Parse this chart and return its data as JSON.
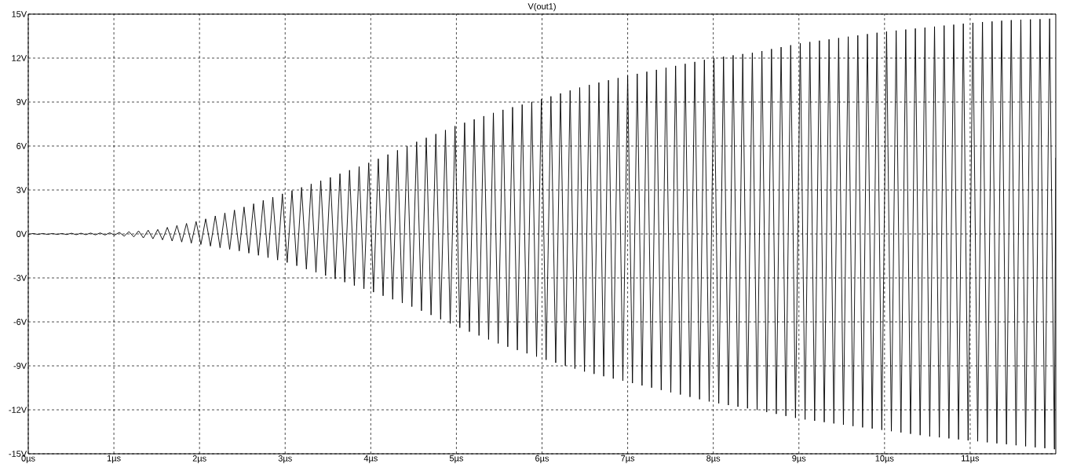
{
  "chart_data": {
    "type": "line",
    "title": "V(out1)",
    "color": "#000000",
    "grid": true,
    "marker": "none",
    "line_style": "solid",
    "xlim": [
      0,
      12
    ],
    "ylim": [
      -15,
      15
    ],
    "xticks": [
      {
        "value": 0,
        "label": "0µs"
      },
      {
        "value": 1,
        "label": "1µs"
      },
      {
        "value": 2,
        "label": "2µs"
      },
      {
        "value": 3,
        "label": "3µs"
      },
      {
        "value": 4,
        "label": "4µs"
      },
      {
        "value": 5,
        "label": "5µs"
      },
      {
        "value": 6,
        "label": "6µs"
      },
      {
        "value": 7,
        "label": "7µs"
      },
      {
        "value": 8,
        "label": "8µs"
      },
      {
        "value": 9,
        "label": "9µs"
      },
      {
        "value": 10,
        "label": "10µs"
      },
      {
        "value": 11,
        "label": "11µs"
      }
    ],
    "yticks": [
      {
        "value": -15,
        "label": "-15V"
      },
      {
        "value": -12,
        "label": "-12V"
      },
      {
        "value": -9,
        "label": "-9V"
      },
      {
        "value": -6,
        "label": "-6V"
      },
      {
        "value": -3,
        "label": "-3V"
      },
      {
        "value": 0,
        "label": "0V"
      },
      {
        "value": 3,
        "label": "3V"
      },
      {
        "value": 6,
        "label": "6V"
      },
      {
        "value": 9,
        "label": "9V"
      },
      {
        "value": 12,
        "label": "12V"
      },
      {
        "value": 15,
        "label": "15V"
      }
    ],
    "x": [
      0,
      0.056,
      0.112,
      0.168,
      0.224,
      0.28,
      0.336,
      0.392,
      0.448,
      0.504,
      0.56,
      0.616,
      0.672,
      0.728,
      0.784,
      0.84,
      0.896,
      0.952,
      1.008,
      1.064,
      1.12,
      1.176,
      1.232,
      1.288,
      1.344,
      1.4,
      1.456,
      1.512,
      1.568,
      1.624,
      1.68,
      1.736,
      1.792,
      1.848,
      1.904,
      1.96,
      2.016,
      2.072,
      2.128,
      2.184,
      2.24,
      2.296,
      2.352,
      2.408,
      2.464,
      2.52,
      2.576,
      2.632,
      2.688,
      2.744,
      2.8,
      2.856,
      2.912,
      2.968,
      3.024,
      3.08,
      3.136,
      3.192,
      3.248,
      3.304,
      3.36,
      3.416,
      3.472,
      3.528,
      3.584,
      3.64,
      3.696,
      3.752,
      3.808,
      3.864,
      3.92,
      3.976,
      4.032,
      4.088,
      4.144,
      4.2,
      4.256,
      4.312,
      4.368,
      4.424,
      4.48,
      4.536,
      4.592,
      4.648,
      4.704,
      4.76,
      4.816,
      4.872,
      4.928,
      4.984,
      5.04,
      5.096,
      5.152,
      5.208,
      5.264,
      5.32,
      5.376,
      5.432,
      5.488,
      5.544,
      5.6,
      5.656,
      5.712,
      5.768,
      5.824,
      5.88,
      5.936,
      5.992,
      6.048,
      6.104,
      6.16,
      6.216,
      6.272,
      6.328,
      6.384,
      6.44,
      6.496,
      6.552,
      6.608,
      6.664,
      6.72,
      6.776,
      6.832,
      6.888,
      6.944,
      7.0,
      7.056,
      7.112,
      7.168,
      7.224,
      7.28,
      7.336,
      7.392,
      7.448,
      7.504,
      7.56,
      7.616,
      7.672,
      7.728,
      7.784,
      7.84,
      7.896,
      7.952,
      8.008,
      8.064,
      8.12,
      8.176,
      8.232,
      8.288,
      8.344,
      8.4,
      8.456,
      8.512,
      8.568,
      8.624,
      8.68,
      8.736,
      8.792,
      8.848,
      8.904,
      8.96,
      9.016,
      9.072,
      9.128,
      9.184,
      9.24,
      9.296,
      9.352,
      9.408,
      9.464,
      9.52,
      9.576,
      9.632,
      9.688,
      9.744,
      9.8,
      9.856,
      9.912,
      9.968,
      10.024,
      10.08,
      10.136,
      10.192,
      10.248,
      10.304,
      10.36,
      10.416,
      10.472,
      10.528,
      10.584,
      10.64,
      10.696,
      10.752,
      10.808,
      10.864,
      10.92,
      10.976,
      11.032,
      11.088,
      11.144,
      11.2,
      11.256,
      11.312,
      11.368,
      11.424,
      11.48,
      11.536,
      11.592,
      11.648,
      11.704,
      11.76,
      11.816,
      11.872,
      11.928,
      11.984,
      12.0
    ],
    "values": [
      -0.03,
      0.03,
      -0.03,
      0.03,
      -0.03,
      0.03,
      -0.03,
      0.03,
      -0.04,
      0.05,
      -0.05,
      0.05,
      -0.05,
      0.06,
      -0.06,
      0.07,
      -0.07,
      0.08,
      -0.08,
      0.11,
      -0.15,
      0.16,
      -0.2,
      0.21,
      -0.27,
      0.26,
      -0.33,
      0.31,
      -0.4,
      0.45,
      -0.48,
      0.58,
      -0.55,
      0.72,
      -0.63,
      0.85,
      -0.72,
      1.03,
      -0.83,
      1.23,
      -0.94,
      1.43,
      -1.05,
      1.63,
      -1.16,
      1.84,
      -1.31,
      2.06,
      -1.46,
      2.29,
      -1.62,
      2.51,
      -1.78,
      2.74,
      -1.95,
      2.96,
      -2.17,
      3.18,
      -2.4,
      3.41,
      -2.62,
      3.63,
      -2.84,
      3.86,
      -3.07,
      4.11,
      -3.29,
      4.35,
      -3.52,
      4.6,
      -3.74,
      4.85,
      -3.97,
      5.13,
      -4.22,
      5.42,
      -4.46,
      5.71,
      -4.71,
      6.0,
      -4.96,
      6.29,
      -5.24,
      6.56,
      -5.53,
      6.82,
      -5.82,
      7.09,
      -6.11,
      7.36,
      -6.4,
      7.59,
      -6.67,
      7.82,
      -6.93,
      8.04,
      -7.2,
      8.26,
      -7.47,
      8.47,
      -7.7,
      8.65,
      -7.92,
      8.83,
      -8.15,
      9.01,
      -8.37,
      9.19,
      -8.59,
      9.39,
      -8.79,
      9.59,
      -8.99,
      9.79,
      -9.19,
      9.99,
      -9.39,
      10.17,
      -9.55,
      10.33,
      -9.71,
      10.49,
      -9.87,
      10.64,
      -10.02,
      10.8,
      -10.18,
      10.93,
      -10.34,
      11.07,
      -10.49,
      11.2,
      -10.65,
      11.34,
      -10.81,
      11.47,
      -10.96,
      11.61,
      -11.12,
      11.74,
      -11.28,
      11.88,
      -11.43,
      12.01,
      -11.56,
      12.1,
      -11.68,
      12.19,
      -11.79,
      12.28,
      -11.9,
      12.36,
      -12.01,
      12.48,
      -12.15,
      12.62,
      -12.28,
      12.75,
      -12.42,
      12.88,
      -12.55,
      13.01,
      -12.66,
      13.1,
      -12.75,
      13.19,
      -12.84,
      13.28,
      -12.93,
      13.37,
      -13.02,
      13.46,
      -13.11,
      13.55,
      -13.2,
      13.64,
      -13.28,
      13.73,
      -13.37,
      13.81,
      -13.46,
      13.88,
      -13.55,
      13.95,
      -13.64,
      14.02,
      -13.73,
      14.08,
      -13.82,
      14.15,
      -13.88,
      14.22,
      -13.95,
      14.28,
      -14.02,
      14.35,
      -14.09,
      14.41,
      -14.15,
      14.46,
      -14.22,
      14.5,
      -14.29,
      14.55,
      -14.35,
      14.59,
      -14.42,
      14.62,
      -14.49,
      14.64,
      -14.56,
      14.66,
      -14.62,
      14.69,
      -14.69,
      5.2
    ]
  }
}
